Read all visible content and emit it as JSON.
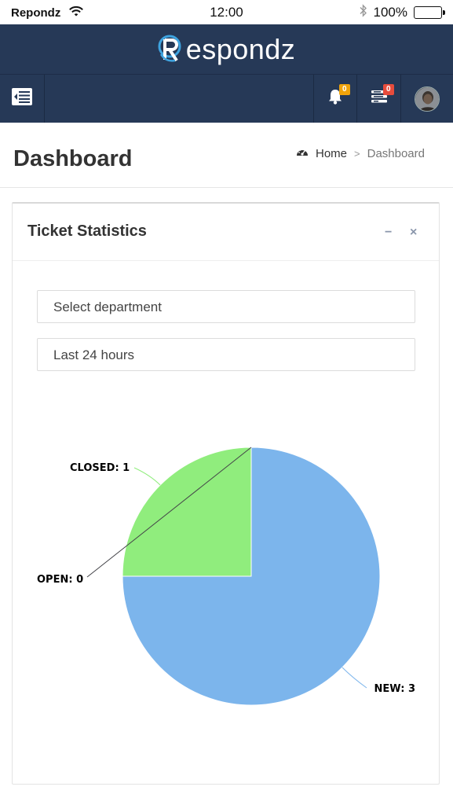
{
  "status_bar": {
    "carrier": "Repondz",
    "time": "12:00",
    "battery": "100%"
  },
  "brand": {
    "logo_text": "espondz"
  },
  "nav": {
    "notifications_count": "0",
    "messages_count": "0"
  },
  "page": {
    "title": "Dashboard",
    "breadcrumb": {
      "home": "Home",
      "separator": ">",
      "current": "Dashboard"
    }
  },
  "portlet": {
    "title": "Ticket Statistics",
    "minimize_label": "−",
    "close_label": "×",
    "department_select": "Select department",
    "range_select": "Last 24 hours"
  },
  "chart_data": {
    "type": "pie",
    "slices": [
      {
        "label": "NEW: 3",
        "name": "NEW",
        "value": 3,
        "color": "#7cb5ec"
      },
      {
        "label": "CLOSED: 1",
        "name": "CLOSED",
        "value": 1,
        "color": "#90ed7d"
      },
      {
        "label": "OPEN: 0",
        "name": "OPEN",
        "value": 0,
        "color": "#434348"
      }
    ]
  },
  "colors": {
    "header_bg": "#263957",
    "badge_orange": "#f0a30a",
    "badge_red": "#e74c3c"
  }
}
